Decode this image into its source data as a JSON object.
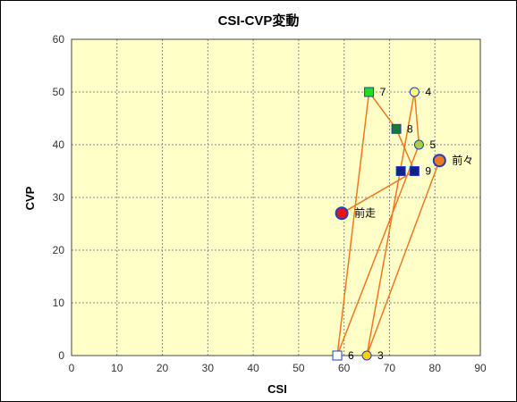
{
  "chart_data": {
    "type": "scatter",
    "title": "CSI-CVP変動",
    "xlabel": "CSI",
    "ylabel": "CVP",
    "xlim": [
      0,
      90
    ],
    "ylim": [
      0,
      60
    ],
    "xticks": [
      0,
      10,
      20,
      30,
      40,
      50,
      60,
      70,
      80,
      90
    ],
    "yticks": [
      0,
      10,
      20,
      30,
      40,
      50,
      60
    ],
    "grid": true,
    "line_color": "#f07820",
    "plot_background": "#ffffc8",
    "path_order": [
      "前々",
      "3",
      "4",
      "5",
      "6",
      "7",
      "8",
      "9",
      "前走"
    ],
    "points": [
      {
        "label": "前々",
        "x": 81,
        "y": 37,
        "marker": "circle-large",
        "fill": "#f07820",
        "stroke": "#1f3fbf"
      },
      {
        "label": "3",
        "x": 65,
        "y": 0,
        "marker": "circle",
        "fill": "#ffd000",
        "stroke": "#1f3fbf"
      },
      {
        "label": "4",
        "x": 75.5,
        "y": 50,
        "marker": "circle",
        "fill": "#ffff80",
        "stroke": "#1f3fbf"
      },
      {
        "label": "5",
        "x": 76.5,
        "y": 40,
        "marker": "circle",
        "fill": "#a8d040",
        "stroke": "#1f3fbf"
      },
      {
        "label": "6",
        "x": 58.5,
        "y": 0,
        "marker": "square",
        "fill": "#ffffff",
        "stroke": "#1f3fbf"
      },
      {
        "label": "7",
        "x": 65.5,
        "y": 50,
        "marker": "square",
        "fill": "#22dd22",
        "stroke": "#1f3fbf"
      },
      {
        "label": "8",
        "x": 71.5,
        "y": 43,
        "marker": "square",
        "fill": "#137a3a",
        "stroke": "#1f3fbf"
      },
      {
        "label": "9",
        "x": 75.5,
        "y": 35,
        "marker": "square",
        "fill": "#12208a",
        "stroke": "#1f3fbf"
      },
      {
        "label": "",
        "x": 72.5,
        "y": 35,
        "marker": "square",
        "fill": "#12208a",
        "stroke": "#1f3fbf"
      },
      {
        "label": "前走",
        "x": 59.5,
        "y": 27,
        "marker": "circle-large",
        "fill": "#ee1111",
        "stroke": "#1f3fbf"
      }
    ]
  }
}
